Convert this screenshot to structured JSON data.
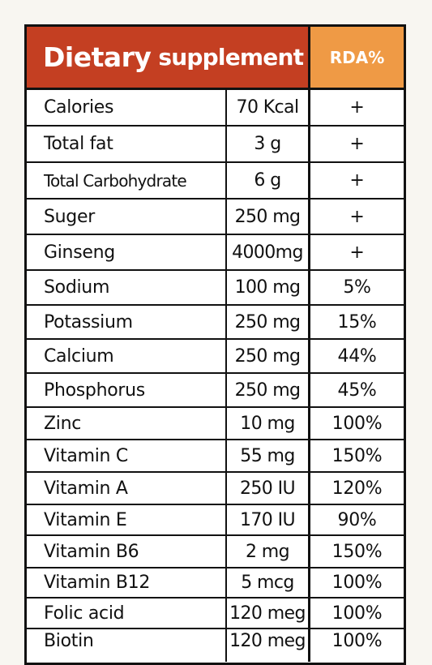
{
  "header": {
    "title_word1": "Dietary",
    "title_word2": "supplement",
    "rda_label": "RDA%"
  },
  "colors": {
    "title_bg": "#c43f22",
    "rda_bg": "#ef9a45",
    "border": "#111111"
  },
  "rows": [
    {
      "name": "Calories",
      "amount": "70 Kcal",
      "rda": "+"
    },
    {
      "name": "Total fat",
      "amount": "3 g",
      "rda": "+"
    },
    {
      "name": "Total Carbohydrate",
      "amount": "6 g",
      "rda": "+"
    },
    {
      "name": "Suger",
      "amount": "250 mg",
      "rda": "+"
    },
    {
      "name": "Ginseng",
      "amount": "4000mg",
      "rda": "+"
    },
    {
      "name": "Sodium",
      "amount": "100 mg",
      "rda": "5%"
    },
    {
      "name": "Potassium",
      "amount": "250 mg",
      "rda": "15%"
    },
    {
      "name": "Calcium",
      "amount": "250 mg",
      "rda": "44%"
    },
    {
      "name": "Phosphorus",
      "amount": "250 mg",
      "rda": "45%"
    },
    {
      "name": "Zinc",
      "amount": "10 mg",
      "rda": "100%"
    },
    {
      "name": "Vitamin C",
      "amount": "55 mg",
      "rda": "150%"
    },
    {
      "name": "Vitamin A",
      "amount": "250 IU",
      "rda": "120%"
    },
    {
      "name": "Vitamin E",
      "amount": "170 IU",
      "rda": "90%"
    },
    {
      "name": "Vitamin B6",
      "amount": "2 mg",
      "rda": "150%"
    },
    {
      "name": "Vitamin B12",
      "amount": "5 mcg",
      "rda": "100%"
    },
    {
      "name": "Folic acid",
      "amount": "120 meg",
      "rda": "100%"
    },
    {
      "name": "Biotin",
      "amount": "120 meg",
      "rda": "100%"
    }
  ]
}
